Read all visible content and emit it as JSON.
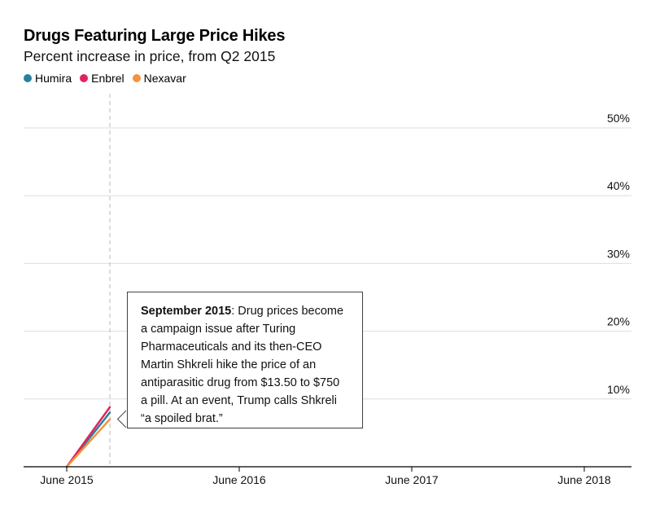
{
  "chart_data": {
    "type": "line",
    "title": "Drugs Featuring Large Price Hikes",
    "subtitle": "Percent increase in price, from Q2 2015",
    "xlabel": "",
    "ylabel": "",
    "x_ticks": [
      "June 2015",
      "June 2016",
      "June 2017",
      "June 2018"
    ],
    "y_ticks": [
      "10%",
      "20%",
      "30%",
      "40%",
      "50%"
    ],
    "ylim": [
      0,
      50
    ],
    "x_dates": [
      "June 2015",
      "September 2015"
    ],
    "series": [
      {
        "name": "Humira",
        "color": "#2a7f9e",
        "values": [
          0,
          8.0
        ]
      },
      {
        "name": "Enbrel",
        "color": "#e0245e",
        "values": [
          0,
          8.8
        ]
      },
      {
        "name": "Nexavar",
        "color": "#f5923a",
        "values": [
          0,
          7.0
        ]
      }
    ],
    "grid": true,
    "legend_position": "top-left",
    "annotation": {
      "date": "September 2015",
      "text": ": Drug prices become a campaign issue after Turing Pharmaceuticals and its then-CEO Martin Shkreli hike the price of an antiparasitic drug from $13.50 to $750 a pill. At an event, Trump calls Shkreli “a spoiled brat.”"
    }
  }
}
